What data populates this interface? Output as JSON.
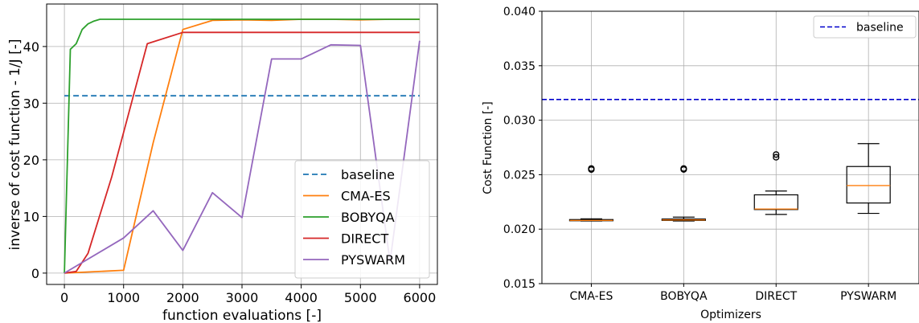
{
  "chart_data": [
    {
      "type": "line",
      "xlabel": "function evaluations [-]",
      "ylabel": "inverse of cost function - 1/J [-]",
      "xlim": [
        -300,
        6300
      ],
      "ylim": [
        -2,
        47.5
      ],
      "xticks": [
        0,
        1000,
        2000,
        3000,
        4000,
        5000,
        6000
      ],
      "yticks": [
        0,
        10,
        20,
        30,
        40
      ],
      "grid": true,
      "legend_position": "lower-right",
      "series": [
        {
          "name": "baseline",
          "color": "#1f77b4",
          "dashed": true,
          "x": [
            0,
            6000
          ],
          "y": [
            31.3,
            31.3
          ]
        },
        {
          "name": "CMA-ES",
          "color": "#ff7f0e",
          "dashed": false,
          "x": [
            0,
            1000,
            1500,
            2000,
            2500,
            3000,
            3500,
            4000,
            4500,
            5000,
            5500,
            6000
          ],
          "y": [
            0,
            0.5,
            23,
            43,
            44.6,
            44.7,
            44.6,
            44.8,
            44.8,
            44.7,
            44.8,
            44.8
          ]
        },
        {
          "name": "BOBYQA",
          "color": "#2ca02c",
          "dashed": false,
          "x": [
            0,
            100,
            200,
            300,
            400,
            500,
            600,
            700,
            1000,
            2000,
            3000,
            4000,
            5000,
            6000
          ],
          "y": [
            0,
            39.5,
            40.5,
            43.0,
            44.0,
            44.5,
            44.8,
            44.8,
            44.8,
            44.8,
            44.8,
            44.8,
            44.8,
            44.8
          ]
        },
        {
          "name": "DIRECT",
          "color": "#d62728",
          "dashed": false,
          "x": [
            0,
            200,
            400,
            800,
            1400,
            2000,
            3000,
            4000,
            5000,
            6000
          ],
          "y": [
            0,
            0.3,
            3.5,
            17,
            40.5,
            42.5,
            42.5,
            42.5,
            42.5,
            42.5
          ]
        },
        {
          "name": "PYSWARM",
          "color": "#9467bd",
          "dashed": false,
          "x": [
            0,
            1000,
            1500,
            2000,
            2500,
            3000,
            3500,
            4000,
            4500,
            5000,
            5500,
            6000
          ],
          "y": [
            0,
            6.2,
            11,
            4,
            14.2,
            9.8,
            37.8,
            37.8,
            40.3,
            40.2,
            2,
            41
          ]
        }
      ]
    },
    {
      "type": "box",
      "xlabel": "Optimizers",
      "ylabel": "Cost Function [-]",
      "ylim": [
        0.015,
        0.04
      ],
      "yticks": [
        "0.015",
        "0.020",
        "0.025",
        "0.030",
        "0.035",
        "0.040"
      ],
      "grid": true,
      "legend_position": "upper-right",
      "baseline": {
        "name": "baseline",
        "value": 0.0319,
        "color": "#0000cc"
      },
      "median_color": "#ff7f0e",
      "categories": [
        "CMA-ES",
        "BOBYQA",
        "DIRECT",
        "PYSWARM"
      ],
      "boxes": [
        {
          "whislo": 0.02075,
          "q1": 0.02078,
          "med": 0.0208,
          "q3": 0.02088,
          "whishi": 0.02095,
          "fliers": [
            0.02547,
            0.02557
          ]
        },
        {
          "whislo": 0.02075,
          "q1": 0.0208,
          "med": 0.02085,
          "q3": 0.02093,
          "whishi": 0.0211,
          "fliers": [
            0.02548,
            0.02557
          ]
        },
        {
          "whislo": 0.02135,
          "q1": 0.0218,
          "med": 0.02185,
          "q3": 0.02315,
          "whishi": 0.0235,
          "fliers": [
            0.0266,
            0.02685
          ]
        },
        {
          "whislo": 0.02145,
          "q1": 0.0224,
          "med": 0.024,
          "q3": 0.02575,
          "whishi": 0.02785,
          "fliers": []
        }
      ]
    }
  ]
}
